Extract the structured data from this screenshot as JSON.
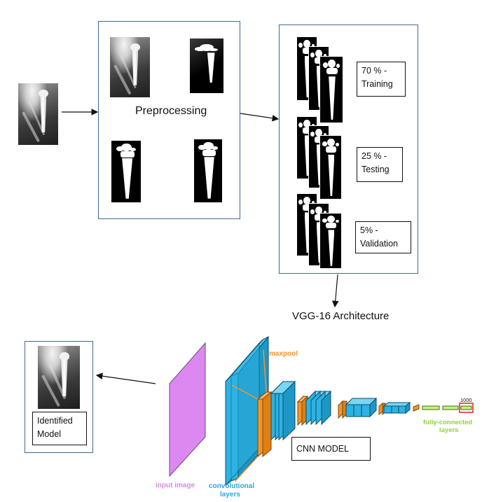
{
  "preprocessing": {
    "label": "Preprocessing"
  },
  "splits": [
    {
      "label_line1": "70 % -",
      "label_line2": "Training"
    },
    {
      "label_line1": "25 % -",
      "label_line2": "Testing"
    },
    {
      "label_line1": "5% -",
      "label_line2": "Validation"
    }
  ],
  "architecture": {
    "title": "VGG-16 Architecture"
  },
  "cnn": {
    "model_label": "CNN MODEL",
    "maxpool_label": "maxpool",
    "input_label": "input image",
    "conv_label_line1": "convolutional",
    "conv_label_line2": "layers",
    "fc_label_line1": "fully-connected",
    "fc_label_line2": "layers",
    "output_size": "1000"
  },
  "output": {
    "label_line1": "Identified",
    "label_line2": "Model"
  },
  "colors": {
    "panel_border": "#3d6a94",
    "input_layer": "#dd88f0",
    "conv_layer": "#2cb3e3",
    "pool_layer": "#f39528",
    "fc_layer": "#c6f07a",
    "fc_text": "#8ed43a",
    "input_text": "#d78ae6",
    "conv_text": "#27a8dc",
    "output_highlight": "#e53030"
  }
}
